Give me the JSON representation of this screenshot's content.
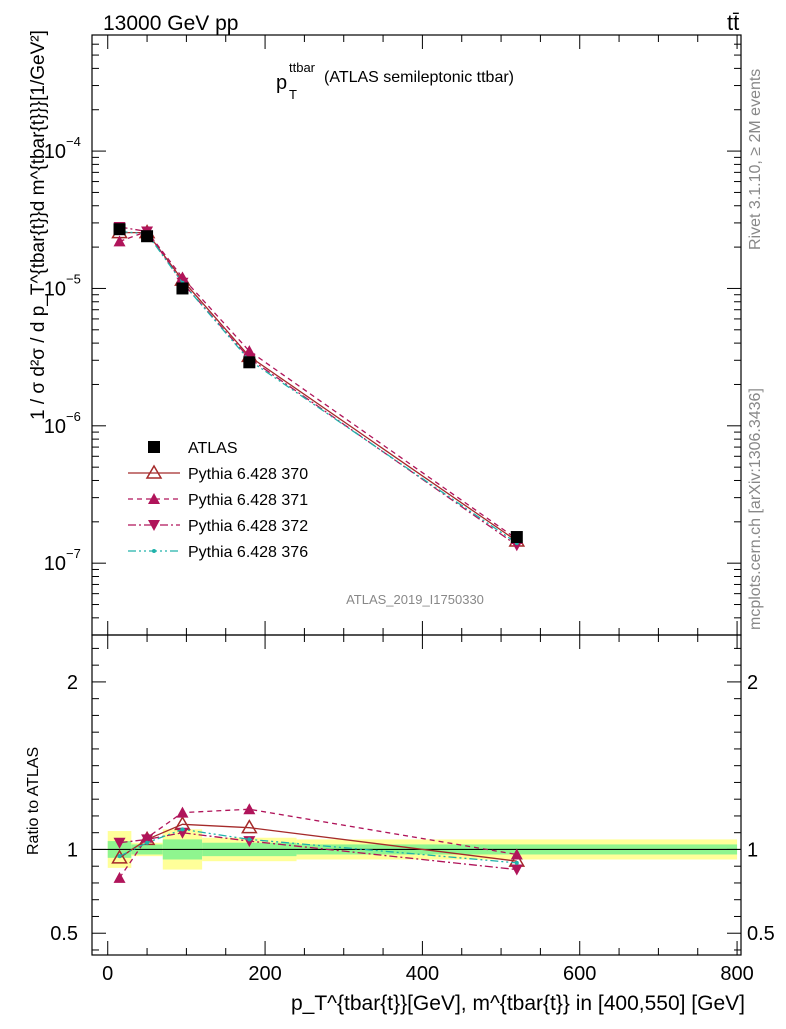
{
  "header": {
    "energy_label": "13000 GeV pp",
    "process_label": "tt̄",
    "side_label_top": "Rivet 3.1.10, ≥ 2M events",
    "side_label_bottom": "mcplots.cern.ch [arXiv:1306.3436]"
  },
  "chart_data": [
    {
      "type": "scatter",
      "title": "(ATLAS semileptonic ttbar)",
      "title_prefix": "p",
      "title_sub": "T",
      "title_sup": "ttbar",
      "ylabel": "1 / σ d²σ / d p_T^{tbar{t}}d m^{tbar{t}}}[1/GeV²]",
      "watermark": "ATLAS_2019_I1750330",
      "yscale": "log",
      "xlim": [
        -20,
        805
      ],
      "ylim": [
        3e-08,
        0.0007
      ],
      "yticks": [
        {
          "value": 1e-07,
          "base": "10",
          "exp": "−7"
        },
        {
          "value": 1e-06,
          "base": "10",
          "exp": "−6"
        },
        {
          "value": 1e-05,
          "base": "10",
          "exp": "−5"
        },
        {
          "value": 0.0001,
          "base": "10",
          "exp": "−4"
        }
      ],
      "legend_position": "bottom-left",
      "series": [
        {
          "name": "ATLAS",
          "color": "#000000",
          "marker": "square",
          "dash": "none",
          "x": [
            15,
            50,
            95,
            180,
            520
          ],
          "y": [
            2.7e-05,
            2.4e-05,
            1e-05,
            2.9e-06,
            1.55e-07
          ]
        },
        {
          "name": "Pythia 6.428 370",
          "color": "#a52a2a",
          "marker": "triangle-up-open",
          "dash": "none",
          "x": [
            15,
            50,
            95,
            180,
            520
          ],
          "y": [
            2.55e-05,
            2.55e-05,
            1.15e-05,
            3.2e-06,
            1.45e-07
          ]
        },
        {
          "name": "Pythia 6.428 371",
          "color": "#b0145a",
          "marker": "triangle-up",
          "dash": "5,4",
          "x": [
            15,
            50,
            95,
            180,
            520
          ],
          "y": [
            2.2e-05,
            2.6e-05,
            1.2e-05,
            3.5e-06,
            1.5e-07
          ]
        },
        {
          "name": "Pythia 6.428 372",
          "color": "#b0145a",
          "marker": "triangle-down",
          "dash": "8,3,2,3",
          "x": [
            15,
            50,
            95,
            180,
            520
          ],
          "y": [
            2.8e-05,
            2.6e-05,
            1.1e-05,
            3.1e-06,
            1.35e-07
          ]
        },
        {
          "name": "Pythia 6.428 376",
          "color": "#20b2aa",
          "marker": "dot",
          "dash": "8,3,2,3,2,3",
          "x": [
            15,
            50,
            95,
            180,
            520
          ],
          "y": [
            2.6e-05,
            2.5e-05,
            1.1e-05,
            3e-06,
            1.4e-07
          ]
        }
      ]
    },
    {
      "type": "line",
      "ylabel": "Ratio to ATLAS",
      "xlabel": "p_T^{tbar{t}}[GeV], m^{tbar{t}} in [400,550] [GeV]",
      "xlim": [
        -20,
        805
      ],
      "ylim": [
        0.37,
        2.28
      ],
      "xticks": [
        0,
        200,
        400,
        600,
        800
      ],
      "yticks": [
        0.5,
        1,
        2
      ],
      "bands": [
        {
          "x0": 0,
          "x1": 30,
          "yellow": [
            0.89,
            1.11
          ],
          "green": [
            0.95,
            1.05
          ]
        },
        {
          "x0": 30,
          "x1": 70,
          "yellow": [
            0.96,
            1.04
          ],
          "green": [
            0.97,
            1.03
          ]
        },
        {
          "x0": 70,
          "x1": 120,
          "yellow": [
            0.88,
            1.12
          ],
          "green": [
            0.94,
            1.06
          ]
        },
        {
          "x0": 120,
          "x1": 240,
          "yellow": [
            0.93,
            1.07
          ],
          "green": [
            0.96,
            1.04
          ]
        },
        {
          "x0": 240,
          "x1": 800,
          "yellow": [
            0.94,
            1.06
          ],
          "green": [
            0.97,
            1.03
          ]
        }
      ],
      "series": [
        {
          "name": "Pythia 6.428 370",
          "x": [
            15,
            50,
            95,
            180,
            520
          ],
          "y": [
            0.95,
            1.06,
            1.15,
            1.13,
            0.93
          ]
        },
        {
          "name": "Pythia 6.428 371",
          "x": [
            15,
            50,
            95,
            180,
            520
          ],
          "y": [
            0.83,
            1.07,
            1.22,
            1.24,
            0.97
          ]
        },
        {
          "name": "Pythia 6.428 372",
          "x": [
            15,
            50,
            95,
            180,
            520
          ],
          "y": [
            1.04,
            1.06,
            1.1,
            1.05,
            0.88
          ]
        },
        {
          "name": "Pythia 6.428 376",
          "x": [
            15,
            50,
            95,
            180,
            520
          ],
          "y": [
            0.96,
            1.04,
            1.12,
            1.06,
            0.92
          ]
        }
      ]
    }
  ]
}
